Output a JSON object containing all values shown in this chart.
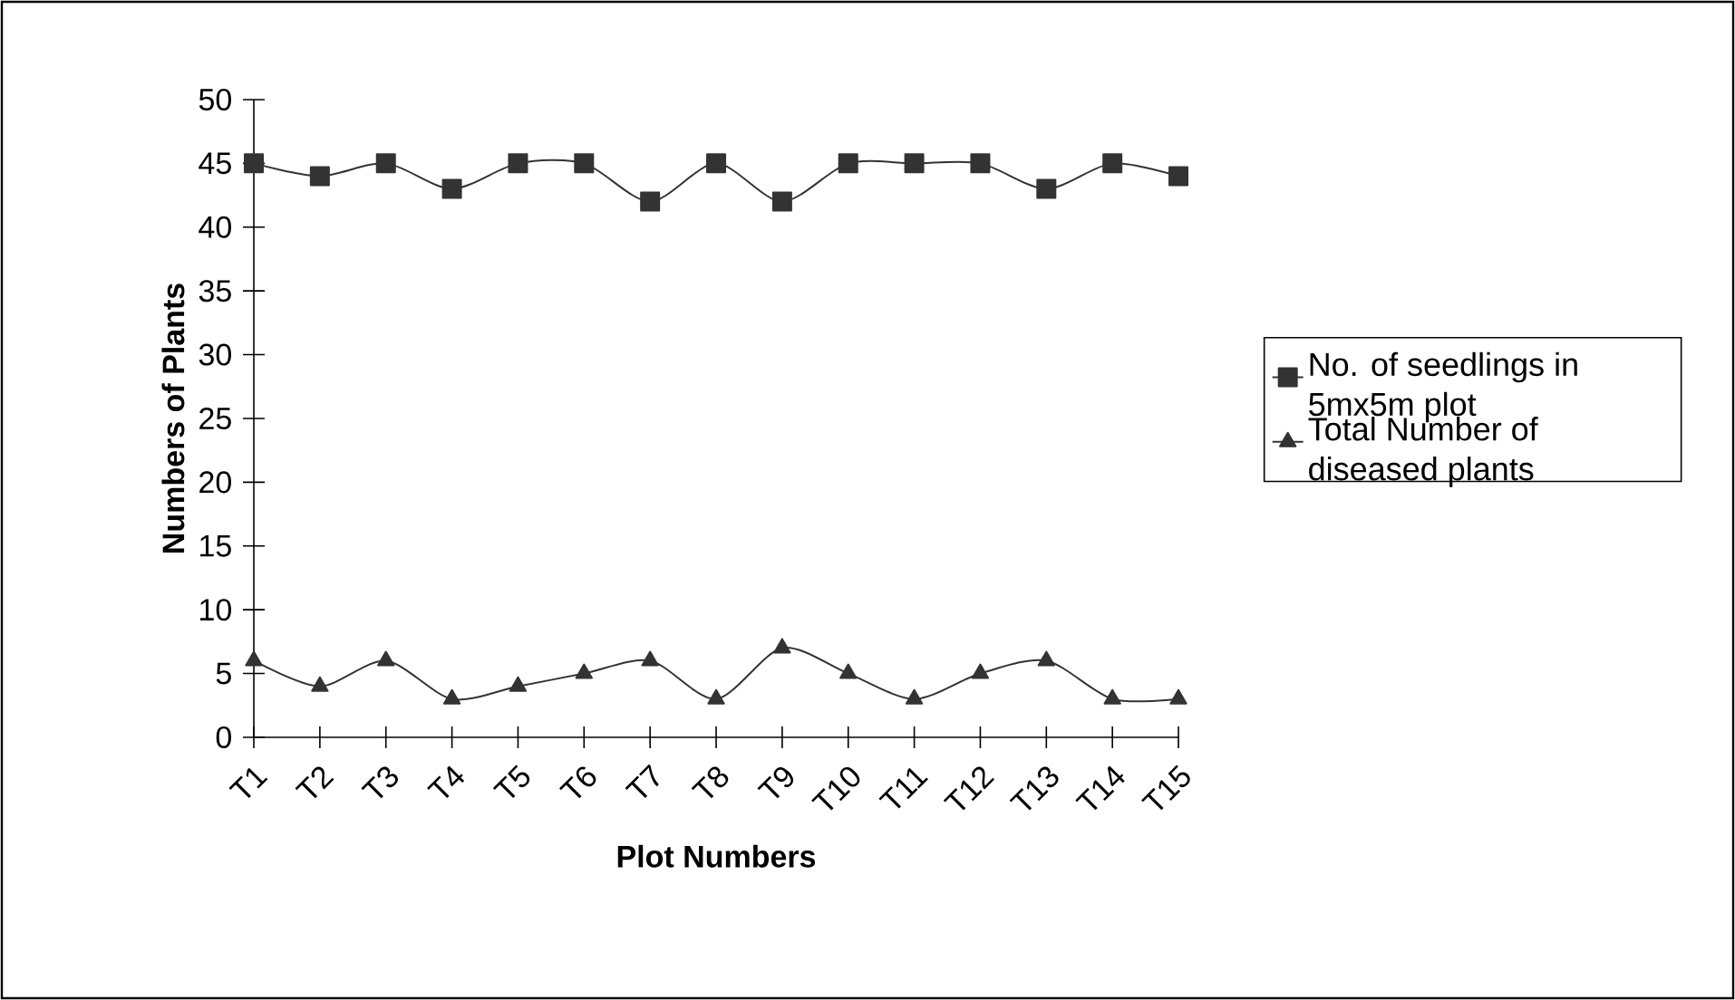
{
  "chart_data": {
    "type": "line",
    "xlabel": "Plot Numbers",
    "ylabel": "Numbers of Plants",
    "categories": [
      "T1",
      "T2",
      "T3",
      "T4",
      "T5",
      "T6",
      "T7",
      "T8",
      "T9",
      "T10",
      "T11",
      "T12",
      "T13",
      "T14",
      "T15"
    ],
    "series": [
      {
        "name": "No. of seedlings in 5mx5m plot",
        "color": "#333333",
        "marker": "square",
        "values": [
          45,
          44,
          45,
          43,
          45,
          45,
          42,
          45,
          42,
          45,
          45,
          45,
          43,
          45,
          44
        ]
      },
      {
        "name": "Total Number of diseased plants",
        "color": "#333333",
        "marker": "triangle",
        "values": [
          6,
          4,
          6,
          3,
          4,
          5,
          6,
          3,
          7,
          5,
          3,
          5,
          6,
          3,
          3
        ]
      }
    ],
    "ylim": [
      0,
      50
    ],
    "yticks": [
      0,
      5,
      10,
      15,
      20,
      25,
      30,
      35,
      40,
      45,
      50
    ],
    "legend": "right",
    "line_style": "solid",
    "grid": false
  }
}
